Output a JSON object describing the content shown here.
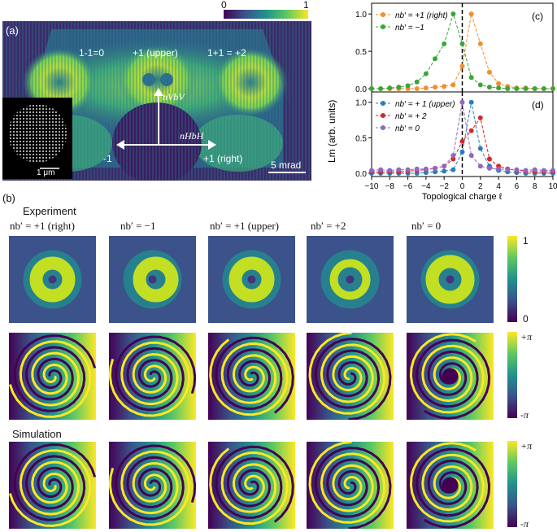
{
  "panel_a": {
    "label": "(a)",
    "colorbar_min": "0",
    "colorbar_max": "1",
    "orders": {
      "top_left": "1-1=0",
      "top_center": "+1 (upper)",
      "top_right": "1+1 = +2",
      "bottom_left": "-1",
      "bottom_right": "+1 (right)"
    },
    "vec_v_label": "nVbV",
    "vec_h_label": "nHbH",
    "scale_bar": "5 mrad",
    "inset_scale": "1 μm"
  },
  "panel_b": {
    "label": "(b)",
    "experiment_label": "Experiment",
    "simulation_label": "Simulation",
    "columns": [
      "nb′ = +1 (right)",
      "nb′ = −1",
      "nb′ = +1 (upper)",
      "nb′ = +2",
      "nb′ = 0"
    ],
    "intensity_cbar": {
      "max": "1",
      "min": "0"
    },
    "phase_cbar": {
      "max": "+π",
      "min": "-π"
    },
    "sim_cbar": {
      "max": "+π",
      "min": "-π"
    }
  },
  "chart_data": [
    {
      "type": "line",
      "panel": "(c)",
      "xlabel": "",
      "ylabel": "",
      "xlim": [
        -10,
        10
      ],
      "ylim": [
        0,
        1.1
      ],
      "yticks": [
        "0.0",
        "0.5",
        "1.0"
      ],
      "x": [
        -10,
        -9,
        -8,
        -7,
        -6,
        -5,
        -4,
        -3,
        -2,
        -1,
        0,
        1,
        2,
        3,
        4,
        5,
        6,
        7,
        8,
        9,
        10
      ],
      "series": [
        {
          "name": "nb′ = +1  (right)",
          "color": "#f28e2b",
          "values": [
            0.0,
            0.0,
            0.0,
            0.0,
            0.0,
            0.0,
            0.01,
            0.02,
            0.03,
            0.05,
            0.3,
            1.0,
            0.6,
            0.22,
            0.07,
            0.03,
            0.01,
            0.01,
            0.0,
            0.0,
            0.0
          ]
        },
        {
          "name": "nb′ = −1",
          "color": "#3aa63a",
          "values": [
            0.0,
            0.0,
            0.01,
            0.02,
            0.04,
            0.09,
            0.2,
            0.4,
            0.6,
            1.0,
            0.6,
            0.15,
            0.05,
            0.02,
            0.01,
            0.0,
            0.0,
            0.0,
            0.0,
            0.0,
            0.0
          ]
        }
      ],
      "marker_line": 0
    },
    {
      "type": "line",
      "panel": "(d)",
      "xlabel": "Topological charge ℓ",
      "ylabel": "Lm (arb. units)",
      "xlim": [
        -10,
        10
      ],
      "ylim": [
        0,
        1.1
      ],
      "yticks": [
        "0.0",
        "0.5",
        "1.0"
      ],
      "xticks": [
        "−10",
        "−8",
        "−6",
        "−4",
        "−2",
        "0",
        "2",
        "4",
        "6",
        "8",
        "10"
      ],
      "x": [
        -10,
        -9,
        -8,
        -7,
        -6,
        -5,
        -4,
        -3,
        -2,
        -1,
        0,
        1,
        2,
        3,
        4,
        5,
        6,
        7,
        8,
        9,
        10
      ],
      "series": [
        {
          "name": "nb′ = + 1 (upper)",
          "color": "#2a7fba",
          "values": [
            0.0,
            0.0,
            0.0,
            0.0,
            0.0,
            0.0,
            0.01,
            0.02,
            0.03,
            0.05,
            0.3,
            1.0,
            0.35,
            0.1,
            0.04,
            0.02,
            0.01,
            0.0,
            0.0,
            0.0,
            0.0
          ]
        },
        {
          "name": "nb′ = + 2",
          "color": "#d62728",
          "values": [
            0.02,
            0.02,
            0.02,
            0.02,
            0.03,
            0.04,
            0.05,
            0.07,
            0.1,
            0.2,
            0.45,
            0.6,
            0.78,
            0.2,
            0.1,
            0.06,
            0.04,
            0.03,
            0.02,
            0.02,
            0.02
          ]
        },
        {
          "name": "nb′ = 0",
          "color": "#9467bd",
          "values": [
            0.04,
            0.05,
            0.04,
            0.05,
            0.05,
            0.06,
            0.06,
            0.07,
            0.1,
            0.25,
            1.0,
            0.25,
            0.1,
            0.07,
            0.06,
            0.05,
            0.05,
            0.04,
            0.05,
            0.04,
            0.04
          ]
        }
      ],
      "marker_line": 0
    }
  ],
  "panel_c_label": "(c)",
  "panel_d_label": "(d)"
}
